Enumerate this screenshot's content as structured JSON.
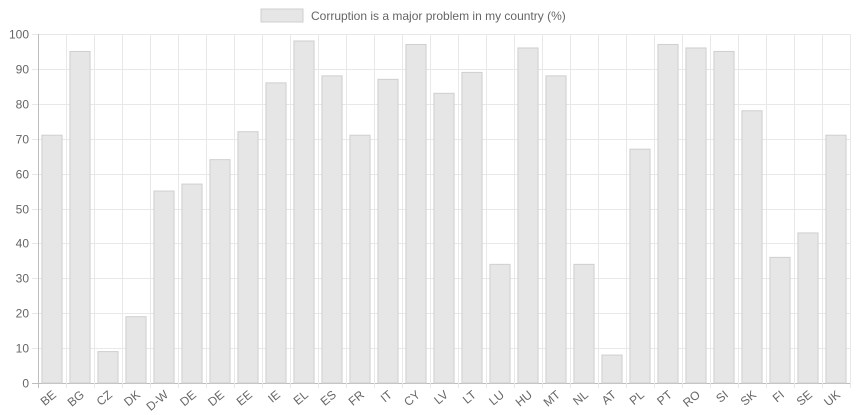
{
  "chart_data": {
    "type": "bar",
    "categories": [
      "BE",
      "BG",
      "CZ",
      "DK",
      "D-W",
      "DE",
      "DE",
      "EE",
      "IE",
      "EL",
      "ES",
      "FR",
      "IT",
      "CY",
      "LV",
      "LT",
      "LU",
      "HU",
      "MT",
      "NL",
      "AT",
      "PL",
      "PT",
      "RO",
      "SI",
      "SK",
      "FI",
      "SE",
      "UK"
    ],
    "series": [
      {
        "name": "Corruption is a major problem in my country (%)",
        "values": [
          71,
          95,
          9,
          19,
          55,
          57,
          64,
          72,
          86,
          98,
          88,
          71,
          87,
          97,
          83,
          89,
          34,
          96,
          88,
          34,
          8,
          67,
          97,
          96,
          95,
          78,
          36,
          43,
          71
        ]
      }
    ],
    "ylim": [
      0,
      100
    ],
    "yticks": [
      0,
      10,
      20,
      30,
      40,
      50,
      60,
      70,
      80,
      90,
      100
    ],
    "grid": true,
    "legend": "top",
    "colors": {
      "bar_fill": "#e6e6e6",
      "bar_stroke": "#cfcfcf",
      "grid": "#e8e8e8",
      "axis": "#bdbdbd"
    }
  }
}
